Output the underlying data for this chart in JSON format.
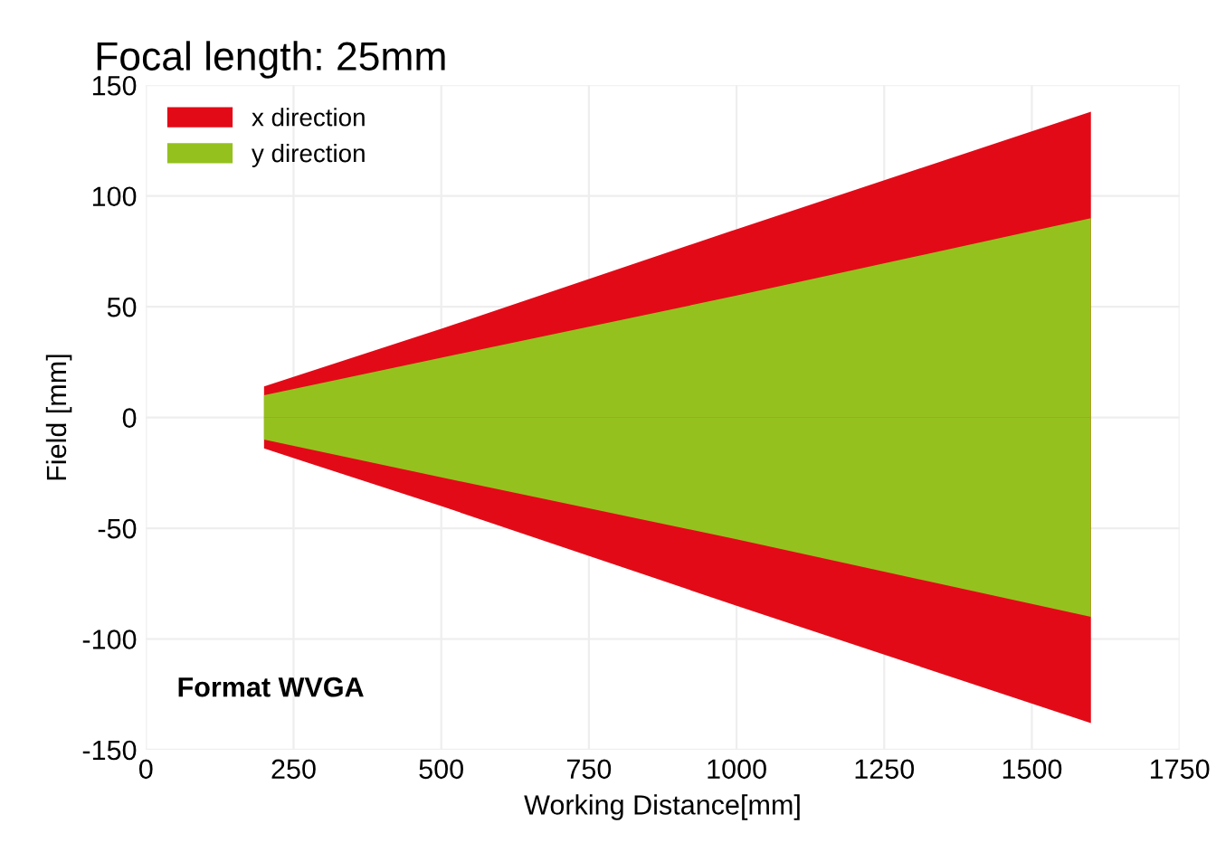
{
  "chart_data": {
    "type": "area",
    "title": "Focal length: 25mm",
    "xlabel": "Working Distance[mm]",
    "ylabel": "Field [mm]",
    "series": [
      {
        "name": "x direction",
        "color": "#e30a17",
        "x": [
          200,
          500,
          1000,
          1600
        ],
        "values": [
          14,
          40,
          85,
          138
        ]
      },
      {
        "color": "#e30a17",
        "x": [
          200,
          500,
          1000,
          1600
        ],
        "values": [
          -14,
          -40,
          -85,
          -138
        ]
      },
      {
        "name": "y direction",
        "color": "#95c11f",
        "x": [
          200,
          500,
          1000,
          1600
        ],
        "values": [
          10,
          27,
          55,
          90
        ]
      },
      {
        "color": "#95c11f",
        "x": [
          200,
          500,
          1000,
          1600
        ],
        "values": [
          -10,
          -27,
          -55,
          -90
        ]
      }
    ],
    "annotations": [
      "Format WVGA"
    ],
    "xlim": [
      0,
      1750
    ],
    "xticks": [
      0,
      250,
      500,
      750,
      1000,
      1250,
      1500,
      1750
    ],
    "ylim": [
      -150,
      150
    ],
    "yticks": [
      -150,
      -100,
      -50,
      0,
      50,
      100,
      150
    ],
    "grid": true,
    "legend": "top left"
  }
}
